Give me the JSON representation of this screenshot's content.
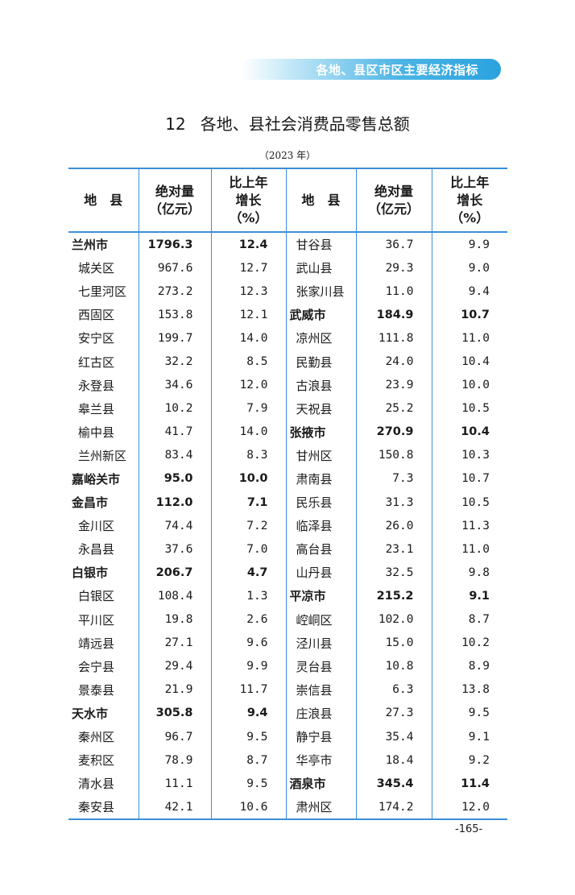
{
  "header_banner": "各地、县区市区主要经济指标",
  "title_number": "12",
  "title_text": "各地、县社会消费品零售总额",
  "year_note": "（2023 年）",
  "columns": {
    "region": "地　县",
    "amount_line1": "绝对量",
    "amount_line2": "（亿元）",
    "growth_line1": "比上年",
    "growth_line2": "增长",
    "growth_line3": "（%）"
  },
  "left_rows": [
    {
      "name": "兰州市",
      "amount": "1796.3",
      "growth": "12.4",
      "city": true
    },
    {
      "name": "城关区",
      "amount": "967.6",
      "growth": "12.7",
      "city": false
    },
    {
      "name": "七里河区",
      "amount": "273.2",
      "growth": "12.3",
      "city": false
    },
    {
      "name": "西固区",
      "amount": "153.8",
      "growth": "12.1",
      "city": false
    },
    {
      "name": "安宁区",
      "amount": "199.7",
      "growth": "14.0",
      "city": false
    },
    {
      "name": "红古区",
      "amount": "32.2",
      "growth": "8.5",
      "city": false
    },
    {
      "name": "永登县",
      "amount": "34.6",
      "growth": "12.0",
      "city": false
    },
    {
      "name": "皋兰县",
      "amount": "10.2",
      "growth": "7.9",
      "city": false
    },
    {
      "name": "榆中县",
      "amount": "41.7",
      "growth": "14.0",
      "city": false
    },
    {
      "name": "兰州新区",
      "amount": "83.4",
      "growth": "8.3",
      "city": false
    },
    {
      "name": "嘉峪关市",
      "amount": "95.0",
      "growth": "10.0",
      "city": true
    },
    {
      "name": "金昌市",
      "amount": "112.0",
      "growth": "7.1",
      "city": true
    },
    {
      "name": "金川区",
      "amount": "74.4",
      "growth": "7.2",
      "city": false
    },
    {
      "name": "永昌县",
      "amount": "37.6",
      "growth": "7.0",
      "city": false
    },
    {
      "name": "白银市",
      "amount": "206.7",
      "growth": "4.7",
      "city": true
    },
    {
      "name": "白银区",
      "amount": "108.4",
      "growth": "1.3",
      "city": false
    },
    {
      "name": "平川区",
      "amount": "19.8",
      "growth": "2.6",
      "city": false
    },
    {
      "name": "靖远县",
      "amount": "27.1",
      "growth": "9.6",
      "city": false
    },
    {
      "name": "会宁县",
      "amount": "29.4",
      "growth": "9.9",
      "city": false
    },
    {
      "name": "景泰县",
      "amount": "21.9",
      "growth": "11.7",
      "city": false
    },
    {
      "name": "天水市",
      "amount": "305.8",
      "growth": "9.4",
      "city": true
    },
    {
      "name": "秦州区",
      "amount": "96.7",
      "growth": "9.5",
      "city": false
    },
    {
      "name": "麦积区",
      "amount": "78.9",
      "growth": "8.7",
      "city": false
    },
    {
      "name": "清水县",
      "amount": "11.1",
      "growth": "9.5",
      "city": false
    },
    {
      "name": "秦安县",
      "amount": "42.1",
      "growth": "10.6",
      "city": false
    }
  ],
  "right_rows": [
    {
      "name": "甘谷县",
      "amount": "36.7",
      "growth": "9.9",
      "city": false
    },
    {
      "name": "武山县",
      "amount": "29.3",
      "growth": "9.0",
      "city": false
    },
    {
      "name": "张家川县",
      "amount": "11.0",
      "growth": "9.4",
      "city": false
    },
    {
      "name": "武威市",
      "amount": "184.9",
      "growth": "10.7",
      "city": true
    },
    {
      "name": "凉州区",
      "amount": "111.8",
      "growth": "11.0",
      "city": false
    },
    {
      "name": "民勤县",
      "amount": "24.0",
      "growth": "10.4",
      "city": false
    },
    {
      "name": "古浪县",
      "amount": "23.9",
      "growth": "10.0",
      "city": false
    },
    {
      "name": "天祝县",
      "amount": "25.2",
      "growth": "10.5",
      "city": false
    },
    {
      "name": "张掖市",
      "amount": "270.9",
      "growth": "10.4",
      "city": true
    },
    {
      "name": "甘州区",
      "amount": "150.8",
      "growth": "10.3",
      "city": false
    },
    {
      "name": "肃南县",
      "amount": "7.3",
      "growth": "10.7",
      "city": false
    },
    {
      "name": "民乐县",
      "amount": "31.3",
      "growth": "10.5",
      "city": false
    },
    {
      "name": "临泽县",
      "amount": "26.0",
      "growth": "11.3",
      "city": false
    },
    {
      "name": "高台县",
      "amount": "23.1",
      "growth": "11.0",
      "city": false
    },
    {
      "name": "山丹县",
      "amount": "32.5",
      "growth": "9.8",
      "city": false
    },
    {
      "name": "平凉市",
      "amount": "215.2",
      "growth": "9.1",
      "city": true
    },
    {
      "name": "崆峒区",
      "amount": "102.0",
      "growth": "8.7",
      "city": false
    },
    {
      "name": "泾川县",
      "amount": "15.0",
      "growth": "10.2",
      "city": false
    },
    {
      "name": "灵台县",
      "amount": "10.8",
      "growth": "8.9",
      "city": false
    },
    {
      "name": "崇信县",
      "amount": "6.3",
      "growth": "13.8",
      "city": false
    },
    {
      "name": "庄浪县",
      "amount": "27.3",
      "growth": "9.5",
      "city": false
    },
    {
      "name": "静宁县",
      "amount": "35.4",
      "growth": "9.1",
      "city": false
    },
    {
      "name": "华亭市",
      "amount": "18.4",
      "growth": "9.2",
      "city": false
    },
    {
      "name": "酒泉市",
      "amount": "345.4",
      "growth": "11.4",
      "city": true
    },
    {
      "name": "肃州区",
      "amount": "174.2",
      "growth": "12.0",
      "city": false
    }
  ],
  "page_number": "-165-"
}
